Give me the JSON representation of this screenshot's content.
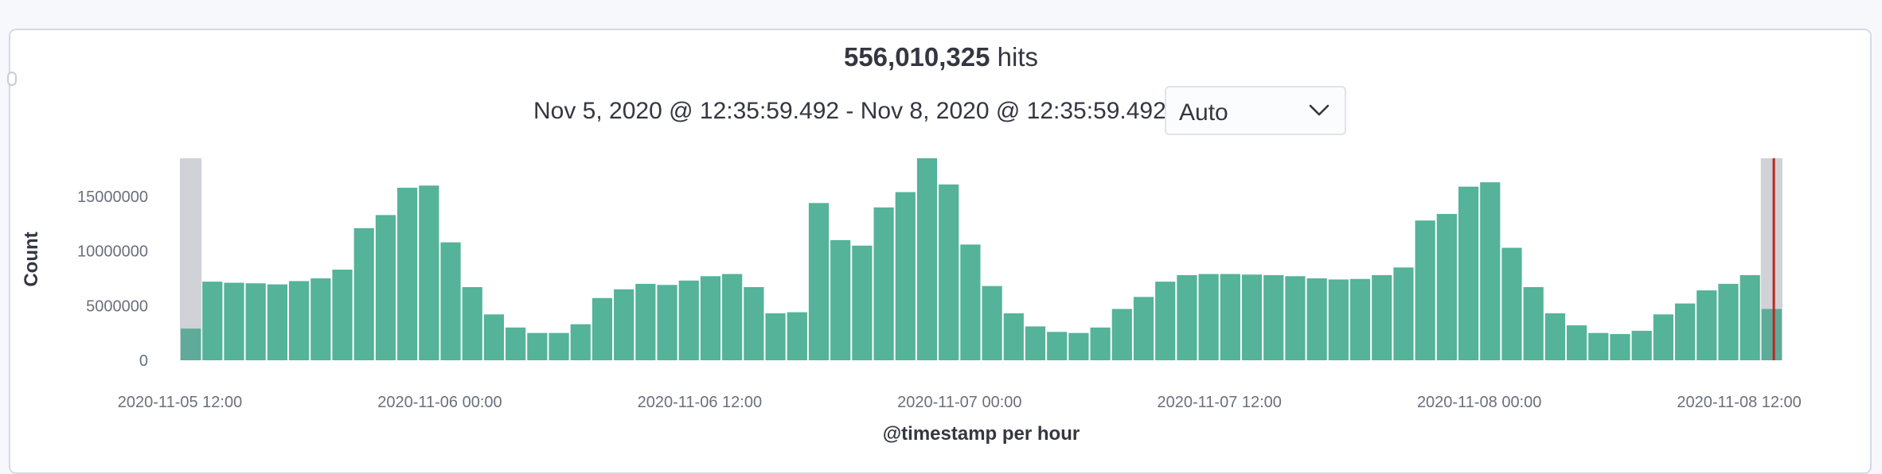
{
  "header": {
    "hits_count": "556,010,325",
    "hits_label": "hits",
    "time_range": "Nov 5, 2020 @ 12:35:59.492 - Nov 8, 2020 @ 12:35:59.492",
    "interval_value": "Auto"
  },
  "icons": {
    "interval_dropdown": "chevron-down-icon"
  },
  "colors": {
    "bar": "#54b399",
    "out_of_range_shade": "#e0e2e6",
    "now_line": "#bd271e"
  },
  "chart_data": {
    "type": "bar",
    "title": "",
    "xlabel": "@timestamp per hour",
    "ylabel": "Count",
    "x_start": "2020-11-05 12:00",
    "interval": "1h",
    "x_tick_labels": [
      "2020-11-05 12:00",
      "2020-11-06 00:00",
      "2020-11-06 12:00",
      "2020-11-07 00:00",
      "2020-11-07 12:00",
      "2020-11-08 00:00",
      "2020-11-08 12:00"
    ],
    "y_ticks": [
      0,
      5000000,
      10000000,
      15000000
    ],
    "y_tick_labels": [
      "0",
      "5000000",
      "10000000",
      "15000000"
    ],
    "ylim": [
      0,
      18500000
    ],
    "grid": false,
    "values": [
      2900000,
      7200000,
      7100000,
      7050000,
      6950000,
      7250000,
      7500000,
      8300000,
      12100000,
      13300000,
      15800000,
      16000000,
      10800000,
      6700000,
      4200000,
      3000000,
      2500000,
      2500000,
      3300000,
      5700000,
      6500000,
      7000000,
      6900000,
      7300000,
      7700000,
      7900000,
      6700000,
      4300000,
      4400000,
      14400000,
      11000000,
      10500000,
      14000000,
      15400000,
      18500000,
      16100000,
      10600000,
      6800000,
      4300000,
      3100000,
      2600000,
      2500000,
      3000000,
      4700000,
      5800000,
      7200000,
      7800000,
      7900000,
      7900000,
      7850000,
      7800000,
      7700000,
      7500000,
      7400000,
      7450000,
      7800000,
      8500000,
      12800000,
      13400000,
      15900000,
      16300000,
      10300000,
      6700000,
      4300000,
      3200000,
      2500000,
      2400000,
      2700000,
      4200000,
      5200000,
      6400000,
      7000000,
      7800000,
      4700000
    ],
    "partial_buckets": "first and last bucket shaded (outside selected range)",
    "now_marker": "2020-11-08 12:35:59.492"
  }
}
